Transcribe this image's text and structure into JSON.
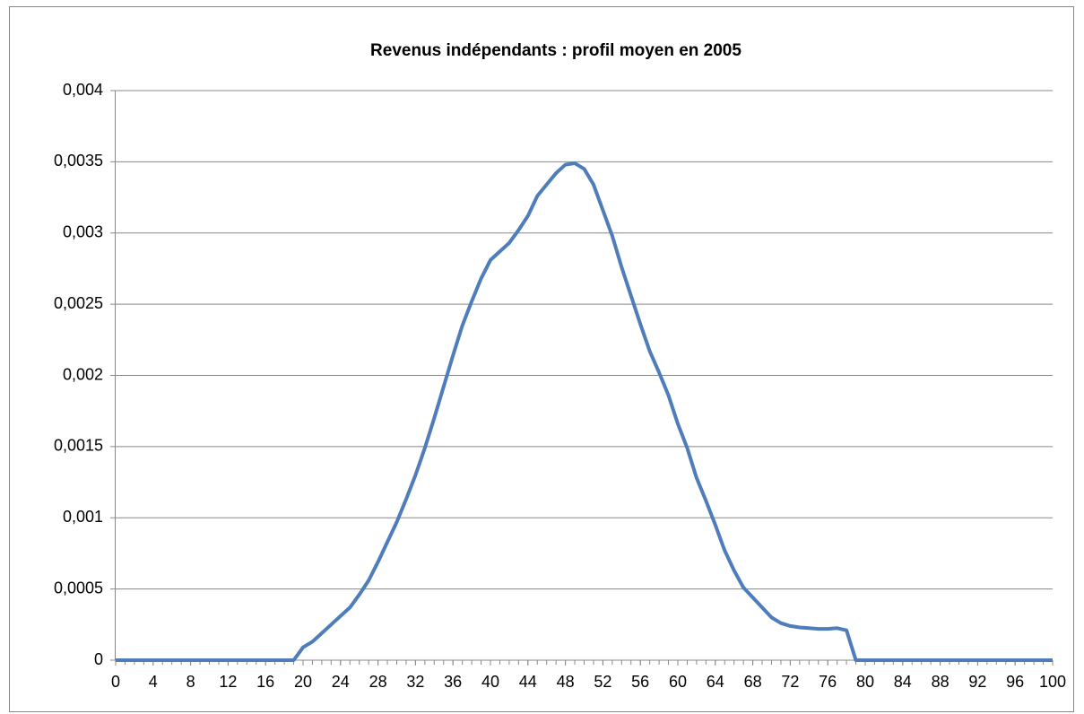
{
  "chart_data": {
    "type": "line",
    "title": "Revenus indépendants : profil moyen en 2005",
    "x": [
      0,
      1,
      2,
      3,
      4,
      5,
      6,
      7,
      8,
      9,
      10,
      11,
      12,
      13,
      14,
      15,
      16,
      17,
      18,
      19,
      20,
      21,
      22,
      23,
      24,
      25,
      26,
      27,
      28,
      29,
      30,
      31,
      32,
      33,
      34,
      35,
      36,
      37,
      38,
      39,
      40,
      41,
      42,
      43,
      44,
      45,
      46,
      47,
      48,
      49,
      50,
      51,
      52,
      53,
      54,
      55,
      56,
      57,
      58,
      59,
      60,
      61,
      62,
      63,
      64,
      65,
      66,
      67,
      68,
      69,
      70,
      71,
      72,
      73,
      74,
      75,
      76,
      77,
      78,
      79,
      80,
      81,
      82,
      83,
      84,
      85,
      86,
      87,
      88,
      89,
      90,
      91,
      92,
      93,
      94,
      95,
      96,
      97,
      98,
      99,
      100
    ],
    "series": [
      {
        "name": "Revenus indépendants",
        "color": "#4f7dbb",
        "values": [
          0,
          0,
          0,
          0,
          0,
          0,
          0,
          0,
          0,
          0,
          0,
          0,
          0,
          0,
          0,
          0,
          0,
          0,
          0,
          0,
          9e-05,
          0.00013,
          0.00019,
          0.00025,
          0.00031,
          0.00037,
          0.00046,
          0.00056,
          0.00069,
          0.00083,
          0.00097,
          0.00113,
          0.0013,
          0.00149,
          0.0017,
          0.00192,
          0.00214,
          0.00235,
          0.00252,
          0.00268,
          0.00281,
          0.00287,
          0.00293,
          0.00302,
          0.00312,
          0.00326,
          0.00334,
          0.00342,
          0.00348,
          0.00349,
          0.00345,
          0.00334,
          0.00316,
          0.00298,
          0.00276,
          0.00256,
          0.00236,
          0.00217,
          0.00202,
          0.00186,
          0.00166,
          0.00149,
          0.00128,
          0.00112,
          0.00095,
          0.00077,
          0.00063,
          0.00051,
          0.00044,
          0.00037,
          0.0003,
          0.00026,
          0.00024,
          0.00023,
          0.000225,
          0.00022,
          0.00022,
          0.000225,
          0.00021,
          0,
          0,
          0,
          0,
          0,
          0,
          0,
          0,
          0,
          0,
          0,
          0,
          0,
          0,
          0,
          0,
          0,
          0,
          0,
          0,
          0,
          0
        ]
      }
    ],
    "xlim": [
      0,
      100
    ],
    "xticks": [
      0,
      4,
      8,
      12,
      16,
      20,
      24,
      28,
      32,
      36,
      40,
      44,
      48,
      52,
      56,
      60,
      64,
      68,
      72,
      76,
      80,
      84,
      88,
      92,
      96,
      100
    ],
    "ylim": [
      0,
      0.004
    ],
    "yticks": [
      0,
      {
        "value": 0.0005,
        "label": "0,0005"
      },
      {
        "value": 0.001,
        "label": "0,001"
      },
      {
        "value": 0.0015,
        "label": "0,0015"
      },
      {
        "value": 0.002,
        "label": "0,002"
      },
      {
        "value": 0.0025,
        "label": "0,0025"
      },
      {
        "value": 0.003,
        "label": "0,003"
      },
      {
        "value": 0.0035,
        "label": "0,0035"
      },
      {
        "value": 0.004,
        "label": "0,004"
      }
    ],
    "grid": true
  }
}
